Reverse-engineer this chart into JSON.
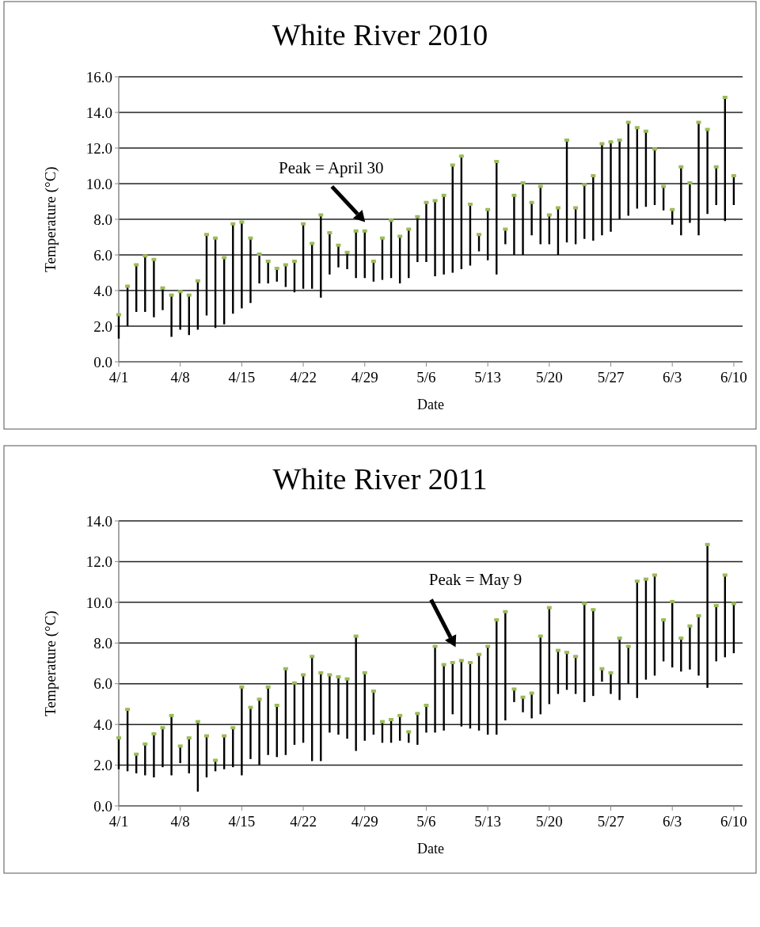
{
  "chart_data": [
    {
      "type": "bar",
      "title": "White River 2010",
      "xlabel": "Date",
      "ylabel": "Temperature (°C)",
      "x": [
        "--04-01",
        "--04-02",
        "--04-03",
        "--04-04",
        "--04-05",
        "--04-06",
        "--04-07",
        "--04-08",
        "--04-09",
        "--04-10",
        "--04-11",
        "--04-12",
        "--04-13",
        "--04-14",
        "--04-15",
        "--04-16",
        "--04-17",
        "--04-18",
        "--04-19",
        "--04-20",
        "--04-21",
        "--04-22",
        "--04-23",
        "--04-24",
        "--04-25",
        "--04-26",
        "--04-27",
        "--04-28",
        "--04-29",
        "--04-30",
        "--05-01",
        "--05-02",
        "--05-03",
        "--05-04",
        "--05-05",
        "--05-06",
        "--05-07",
        "--05-08",
        "--05-09",
        "--05-10",
        "--05-11",
        "--05-12",
        "--05-13",
        "--05-14",
        "--05-15",
        "--05-16",
        "--05-17",
        "--05-18",
        "--05-19",
        "--05-20",
        "--05-21",
        "--05-22",
        "--05-23",
        "--05-24",
        "--05-25",
        "--05-26",
        "--05-27",
        "--05-28",
        "--05-29",
        "--05-30",
        "--05-31",
        "--06-01",
        "--06-02",
        "--06-03",
        "--06-04",
        "--06-05",
        "--06-06",
        "--06-07",
        "--06-08",
        "--06-09",
        "--06-10"
      ],
      "series": [
        {
          "color": "#000000",
          "base": [
            1.3,
            2.0,
            2.8,
            2.8,
            2.5,
            2.9,
            1.4,
            1.8,
            1.5,
            1.8,
            2.6,
            1.9,
            2.1,
            2.7,
            3.0,
            3.3,
            4.4,
            4.4,
            4.5,
            4.2,
            3.9,
            4.1,
            4.1,
            3.6,
            4.9,
            5.3,
            5.2,
            4.7,
            4.7,
            4.5,
            4.6,
            4.7,
            4.4,
            4.7,
            5.6,
            5.6,
            4.8,
            4.9,
            5.0,
            5.2,
            5.4,
            6.2,
            5.7,
            4.9,
            6.6,
            6.0,
            6.0,
            7.1,
            6.6,
            6.6,
            6.0,
            6.7,
            6.6,
            6.9,
            6.8,
            7.1,
            7.3,
            8.0,
            8.2,
            8.6,
            8.7,
            8.8,
            8.5,
            7.7,
            7.1,
            7.8,
            7.1,
            8.3,
            8.8,
            7.9,
            8.8
          ],
          "values": [
            1.3,
            2.2,
            2.6,
            3.1,
            3.2,
            1.2,
            2.3,
            2.1,
            2.2,
            2.7,
            4.5,
            5.0,
            3.7,
            5.0,
            4.8,
            3.6,
            1.6,
            1.2,
            0.7,
            1.2,
            1.7,
            3.6,
            2.5,
            4.6,
            2.3,
            1.2,
            0.9,
            2.6,
            2.6,
            1.1,
            2.3,
            3.2,
            2.6,
            2.7,
            2.5,
            3.3,
            4.2,
            4.4,
            6.0,
            6.3,
            3.4,
            0.9,
            2.8,
            6.3,
            0.8,
            3.3,
            4.0,
            1.8,
            3.2,
            1.6,
            2.6,
            5.7,
            2.0,
            3.0,
            3.6,
            5.1,
            5.0,
            4.4,
            5.2,
            4.5,
            4.2,
            3.1,
            1.3,
            0.8,
            3.8,
            2.2,
            6.3,
            4.7,
            2.1,
            6.9,
            1.6
          ]
        },
        {
          "type": "scatter",
          "color": "#9bbb59",
          "marker": "square",
          "values": [
            2.6,
            4.2,
            5.4,
            5.9,
            5.7,
            4.1,
            3.7,
            3.9,
            3.7,
            4.5,
            7.1,
            6.9,
            5.8,
            7.7,
            7.8,
            6.9,
            6.0,
            5.6,
            5.2,
            5.4,
            5.6,
            7.7,
            6.6,
            8.2,
            7.2,
            6.5,
            6.1,
            7.3,
            7.3,
            5.6,
            6.9,
            7.9,
            7.0,
            7.4,
            8.1,
            8.9,
            9.0,
            9.3,
            11.0,
            11.5,
            8.8,
            7.1,
            8.5,
            11.2,
            7.4,
            9.3,
            10.0,
            8.9,
            9.8,
            8.2,
            8.6,
            12.4,
            8.6,
            9.9,
            10.4,
            12.2,
            12.3,
            12.4,
            13.4,
            13.1,
            12.9,
            11.9,
            9.8,
            8.5,
            10.9,
            10.0,
            13.4,
            13.0,
            10.9,
            14.8,
            10.4
          ]
        }
      ],
      "xlim": [
        "--04-01",
        "--06-11"
      ],
      "xticks": [
        {
          "value": "--04-01",
          "label": "4/1"
        },
        {
          "value": "--04-08",
          "label": "4/8"
        },
        {
          "value": "--04-15",
          "label": "4/15"
        },
        {
          "value": "--04-22",
          "label": "4/22"
        },
        {
          "value": "--04-29",
          "label": "4/29"
        },
        {
          "value": "--05-06",
          "label": "5/6"
        },
        {
          "value": "--05-13",
          "label": "5/13"
        },
        {
          "value": "--05-20",
          "label": "5/20"
        },
        {
          "value": "--05-27",
          "label": "5/27"
        },
        {
          "value": "--06-03",
          "label": "6/3"
        },
        {
          "value": "--06-10",
          "label": "6/10"
        }
      ],
      "ylim": [
        0,
        16
      ],
      "yticks": [
        {
          "value": 0,
          "label": "0.0"
        },
        {
          "value": 2,
          "label": "2.0"
        },
        {
          "value": 4,
          "label": "4.0"
        },
        {
          "value": 6,
          "label": "6.0"
        },
        {
          "value": 8,
          "label": "8.0"
        },
        {
          "value": 10,
          "label": "10.0"
        },
        {
          "value": 12,
          "label": "12.0"
        },
        {
          "value": 14,
          "label": "14.0"
        },
        {
          "value": 16,
          "label": "16.0"
        }
      ],
      "grid": "y",
      "annotations": [
        "Peak = April 30"
      ]
    },
    {
      "type": "bar",
      "title": "White River 2011",
      "xlabel": "Date",
      "ylabel": "Temperature (°C)",
      "x": [
        "--04-01",
        "--04-02",
        "--04-03",
        "--04-04",
        "--04-05",
        "--04-06",
        "--04-07",
        "--04-08",
        "--04-09",
        "--04-10",
        "--04-11",
        "--04-12",
        "--04-13",
        "--04-14",
        "--04-15",
        "--04-16",
        "--04-17",
        "--04-18",
        "--04-19",
        "--04-20",
        "--04-21",
        "--04-22",
        "--04-23",
        "--04-24",
        "--04-25",
        "--04-26",
        "--04-27",
        "--04-28",
        "--04-29",
        "--04-30",
        "--05-01",
        "--05-02",
        "--05-03",
        "--05-04",
        "--05-05",
        "--05-06",
        "--05-07",
        "--05-08",
        "--05-09",
        "--05-10",
        "--05-11",
        "--05-12",
        "--05-13",
        "--05-14",
        "--05-15",
        "--05-16",
        "--05-17",
        "--05-18",
        "--05-19",
        "--05-20",
        "--05-21",
        "--05-22",
        "--05-23",
        "--05-24",
        "--05-25",
        "--05-26",
        "--05-27",
        "--05-28",
        "--05-29",
        "--05-30",
        "--05-31",
        "--06-01",
        "--06-02",
        "--06-03",
        "--06-04",
        "--06-05",
        "--06-06",
        "--06-07",
        "--06-08",
        "--06-09",
        "--06-10"
      ],
      "series": [
        {
          "color": "#000000",
          "base": [
            1.8,
            1.7,
            1.6,
            1.5,
            1.4,
            1.9,
            1.5,
            2.1,
            1.6,
            0.7,
            1.4,
            1.7,
            1.8,
            1.9,
            1.5,
            2.3,
            2.0,
            2.5,
            2.4,
            2.5,
            3.0,
            3.1,
            2.2,
            2.2,
            3.6,
            3.5,
            3.3,
            2.7,
            3.2,
            3.5,
            3.1,
            3.1,
            3.2,
            3.1,
            3.0,
            3.6,
            3.6,
            3.7,
            4.5,
            3.9,
            3.8,
            3.7,
            3.5,
            3.5,
            4.2,
            5.1,
            4.6,
            4.3,
            4.5,
            5.0,
            5.5,
            5.7,
            5.5,
            5.1,
            5.4,
            6.1,
            5.5,
            5.2,
            6.0,
            5.3,
            6.2,
            6.4,
            7.1,
            6.8,
            6.6,
            6.7,
            6.4,
            5.8,
            7.1,
            7.3,
            7.5
          ],
          "values": [
            1.5,
            3.0,
            0.9,
            1.5,
            2.1,
            1.9,
            2.9,
            0.8,
            1.7,
            3.4,
            2.0,
            0.5,
            1.6,
            1.9,
            4.3,
            2.5,
            3.2,
            3.3,
            2.5,
            4.2,
            3.0,
            3.3,
            5.1,
            4.3,
            2.8,
            2.8,
            2.9,
            5.6,
            3.3,
            2.1,
            1.0,
            1.1,
            1.2,
            0.5,
            1.5,
            1.3,
            4.2,
            3.2,
            2.5,
            3.2,
            3.2,
            3.7,
            4.3,
            5.6,
            5.3,
            0.6,
            0.7,
            1.2,
            3.8,
            4.7,
            2.1,
            1.8,
            1.8,
            4.8,
            4.2,
            0.6,
            1.0,
            3.0,
            1.8,
            5.7,
            4.9,
            4.9,
            2.0,
            3.2,
            1.6,
            2.1,
            2.9,
            7.0,
            2.7,
            4.0,
            2.4
          ]
        },
        {
          "type": "scatter",
          "color": "#9bbb59",
          "marker": "square",
          "values": [
            3.3,
            4.7,
            2.5,
            3.0,
            3.5,
            3.8,
            4.4,
            2.9,
            3.3,
            4.1,
            3.4,
            2.2,
            3.4,
            3.8,
            5.8,
            4.8,
            5.2,
            5.8,
            4.9,
            6.7,
            6.0,
            6.4,
            7.3,
            6.5,
            6.4,
            6.3,
            6.2,
            8.3,
            6.5,
            5.6,
            4.1,
            4.2,
            4.4,
            3.6,
            4.5,
            4.9,
            7.8,
            6.9,
            7.0,
            7.1,
            7.0,
            7.4,
            7.8,
            9.1,
            9.5,
            5.7,
            5.3,
            5.5,
            8.3,
            9.7,
            7.6,
            7.5,
            7.3,
            9.9,
            9.6,
            6.7,
            6.5,
            8.2,
            7.8,
            11.0,
            11.1,
            11.3,
            9.1,
            10.0,
            8.2,
            8.8,
            9.3,
            12.8,
            9.8,
            11.3,
            9.9
          ]
        }
      ],
      "xlim": [
        "--04-01",
        "--06-11"
      ],
      "xticks": [
        {
          "value": "--04-01",
          "label": "4/1"
        },
        {
          "value": "--04-08",
          "label": "4/8"
        },
        {
          "value": "--04-15",
          "label": "4/15"
        },
        {
          "value": "--04-22",
          "label": "4/22"
        },
        {
          "value": "--04-29",
          "label": "4/29"
        },
        {
          "value": "--05-06",
          "label": "5/6"
        },
        {
          "value": "--05-13",
          "label": "5/13"
        },
        {
          "value": "--05-20",
          "label": "5/20"
        },
        {
          "value": "--05-27",
          "label": "5/27"
        },
        {
          "value": "--06-03",
          "label": "6/3"
        },
        {
          "value": "--06-10",
          "label": "6/10"
        }
      ],
      "ylim": [
        0,
        14
      ],
      "yticks": [
        {
          "value": 0,
          "label": "0.0"
        },
        {
          "value": 2,
          "label": "2.0"
        },
        {
          "value": 4,
          "label": "4.0"
        },
        {
          "value": 6,
          "label": "6.0"
        },
        {
          "value": 8,
          "label": "8.0"
        },
        {
          "value": 10,
          "label": "10.0"
        },
        {
          "value": 12,
          "label": "12.0"
        },
        {
          "value": 14,
          "label": "14.0"
        }
      ],
      "grid": "y",
      "annotations": [
        "Peak = May 9"
      ]
    }
  ]
}
